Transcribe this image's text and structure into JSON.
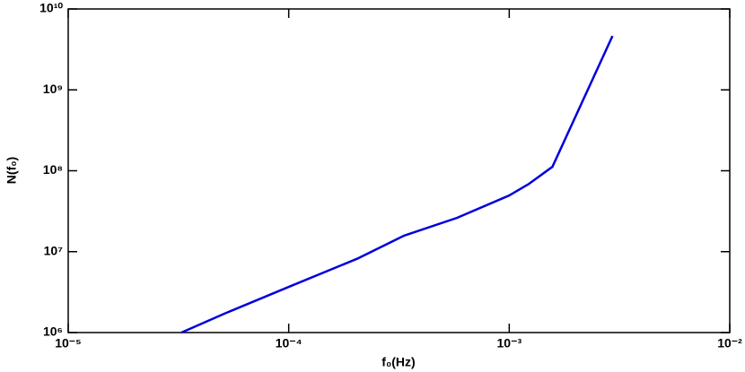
{
  "chart_data": {
    "type": "line",
    "xlabel": "f₀(Hz)",
    "ylabel": "N(f₀)",
    "xscale": "log",
    "yscale": "log",
    "xlim": [
      1e-05,
      0.01
    ],
    "ylim": [
      1000000,
      10000000000
    ],
    "xticks": [
      {
        "value": 1e-05,
        "label": "10⁻⁵"
      },
      {
        "value": 0.0001,
        "label": "10⁻⁴"
      },
      {
        "value": 0.001,
        "label": "10⁻³"
      },
      {
        "value": 0.01,
        "label": "10⁻²"
      }
    ],
    "yticks": [
      {
        "value": 1000000,
        "label": "10⁶"
      },
      {
        "value": 10000000,
        "label": "10⁷"
      },
      {
        "value": 100000000,
        "label": "10⁸"
      },
      {
        "value": 1000000000,
        "label": "10⁹"
      },
      {
        "value": 10000000000,
        "label": "10¹⁰"
      }
    ],
    "series": [
      {
        "color": "#0000dd",
        "x": [
          3.26e-05,
          5.1e-05,
          0.0001,
          0.000207,
          0.000332,
          0.00058,
          0.001,
          0.00123,
          0.00157,
          0.00294
        ],
        "values": [
          1000000,
          1710000,
          3670000,
          8300000,
          15700000,
          26200000,
          49500000,
          69000000,
          112000000,
          4640000000
        ]
      }
    ]
  }
}
